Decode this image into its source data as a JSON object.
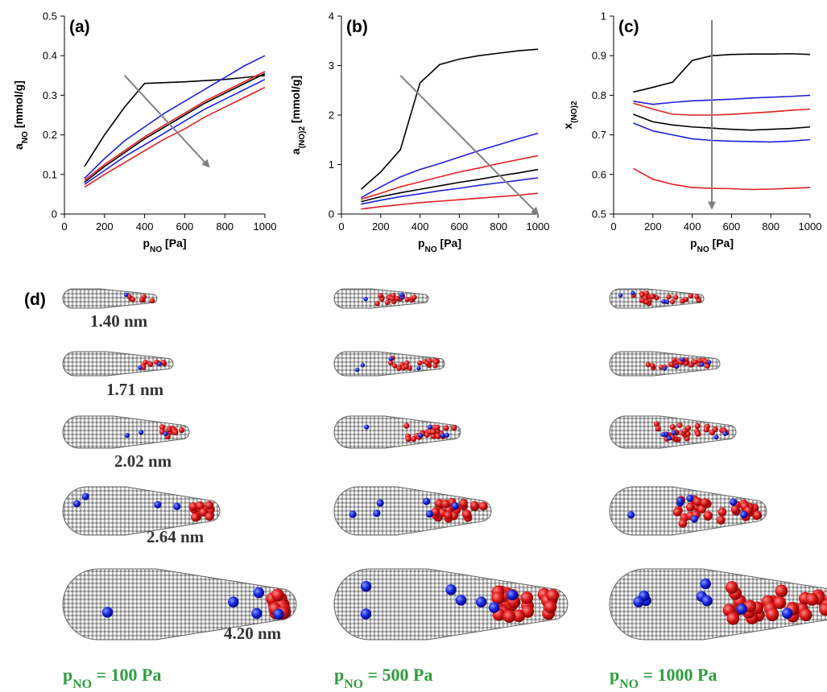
{
  "chart_data": [
    {
      "type": "line",
      "title": "(a)",
      "xlabel": [
        "p",
        "NO",
        " [Pa]"
      ],
      "ylabel": [
        "a",
        "NO",
        " [mmol/g]"
      ],
      "x": [
        100,
        200,
        300,
        400,
        500,
        600,
        700,
        800,
        900,
        1000
      ],
      "xlim": [
        0,
        1000
      ],
      "xticks": [
        0,
        200,
        400,
        600,
        800,
        1000
      ],
      "ylim": [
        0,
        0.5
      ],
      "yticks": [
        0,
        0.1,
        0.2,
        0.3,
        0.4,
        0.5
      ],
      "series": [
        {
          "color": "#000000",
          "values": [
            0.12,
            0.2,
            0.27,
            0.33,
            0.332,
            0.334,
            0.337,
            0.34,
            0.345,
            0.35
          ]
        },
        {
          "color": "#1f1fe0",
          "values": [
            0.09,
            0.14,
            0.185,
            0.22,
            0.255,
            0.285,
            0.315,
            0.345,
            0.375,
            0.4
          ]
        },
        {
          "color": "#e02020",
          "values": [
            0.085,
            0.125,
            0.16,
            0.195,
            0.225,
            0.255,
            0.285,
            0.31,
            0.335,
            0.36
          ]
        },
        {
          "color": "#000000",
          "values": [
            0.08,
            0.12,
            0.155,
            0.19,
            0.22,
            0.25,
            0.28,
            0.305,
            0.33,
            0.355
          ]
        },
        {
          "color": "#1f1fe0",
          "values": [
            0.075,
            0.11,
            0.145,
            0.175,
            0.205,
            0.235,
            0.265,
            0.29,
            0.315,
            0.34
          ]
        },
        {
          "color": "#e02020",
          "values": [
            0.068,
            0.1,
            0.13,
            0.16,
            0.19,
            0.215,
            0.245,
            0.27,
            0.295,
            0.32
          ]
        }
      ]
    },
    {
      "type": "line",
      "title": "(b)",
      "xlabel": [
        "p",
        "NO",
        " [Pa]"
      ],
      "ylabel": [
        "a",
        "(NO)2",
        " [mmol/g]"
      ],
      "x": [
        100,
        200,
        300,
        400,
        500,
        600,
        700,
        800,
        900,
        1000
      ],
      "xlim": [
        0,
        1000
      ],
      "xticks": [
        0,
        200,
        400,
        600,
        800,
        1000
      ],
      "ylim": [
        0,
        4
      ],
      "yticks": [
        0,
        1,
        2,
        3,
        4
      ],
      "series": [
        {
          "color": "#000000",
          "values": [
            0.5,
            0.85,
            1.3,
            2.65,
            3.02,
            3.13,
            3.2,
            3.25,
            3.3,
            3.33
          ]
        },
        {
          "color": "#1f1fe0",
          "values": [
            0.33,
            0.55,
            0.75,
            0.9,
            1.02,
            1.15,
            1.28,
            1.4,
            1.52,
            1.63
          ]
        },
        {
          "color": "#e02020",
          "values": [
            0.3,
            0.42,
            0.55,
            0.65,
            0.75,
            0.85,
            0.93,
            1.02,
            1.1,
            1.18
          ]
        },
        {
          "color": "#000000",
          "values": [
            0.25,
            0.35,
            0.43,
            0.5,
            0.57,
            0.64,
            0.7,
            0.77,
            0.83,
            0.9
          ]
        },
        {
          "color": "#1f1fe0",
          "values": [
            0.2,
            0.28,
            0.35,
            0.41,
            0.47,
            0.52,
            0.58,
            0.63,
            0.68,
            0.73
          ]
        },
        {
          "color": "#e02020",
          "values": [
            0.1,
            0.15,
            0.19,
            0.23,
            0.26,
            0.29,
            0.32,
            0.35,
            0.38,
            0.42
          ]
        }
      ]
    },
    {
      "type": "line",
      "title": "(c)",
      "xlabel": [
        "p",
        "NO",
        " [Pa]"
      ],
      "ylabel": [
        "x",
        "(NO)2"
      ],
      "x": [
        100,
        200,
        300,
        400,
        500,
        600,
        700,
        800,
        900,
        1000
      ],
      "xlim": [
        0,
        1000
      ],
      "xticks": [
        0,
        200,
        400,
        600,
        800,
        1000
      ],
      "ylim": [
        0.5,
        1
      ],
      "yticks": [
        0.5,
        0.6,
        0.7,
        0.8,
        0.9,
        1
      ],
      "series": [
        {
          "color": "#000000",
          "values": [
            0.808,
            0.82,
            0.833,
            0.888,
            0.9,
            0.903,
            0.904,
            0.904,
            0.905,
            0.903
          ]
        },
        {
          "color": "#1f1fe0",
          "values": [
            0.785,
            0.777,
            0.782,
            0.786,
            0.788,
            0.79,
            0.793,
            0.795,
            0.797,
            0.8
          ]
        },
        {
          "color": "#e02020",
          "values": [
            0.78,
            0.765,
            0.752,
            0.75,
            0.75,
            0.752,
            0.755,
            0.758,
            0.762,
            0.765
          ]
        },
        {
          "color": "#000000",
          "values": [
            0.752,
            0.733,
            0.725,
            0.72,
            0.717,
            0.714,
            0.712,
            0.714,
            0.716,
            0.72
          ]
        },
        {
          "color": "#1f1fe0",
          "values": [
            0.73,
            0.71,
            0.7,
            0.69,
            0.686,
            0.684,
            0.683,
            0.682,
            0.684,
            0.688
          ]
        },
        {
          "color": "#e02020",
          "values": [
            0.615,
            0.588,
            0.575,
            0.567,
            0.565,
            0.564,
            0.562,
            0.563,
            0.565,
            0.567
          ]
        }
      ]
    }
  ],
  "panel_d": {
    "label": "(d)",
    "sizes": [
      "1.40 nm",
      "1.71 nm",
      "2.02 nm",
      "2.64 nm",
      "4.20 nm"
    ],
    "pressures": [
      [
        "p",
        "NO",
        " = 100 Pa"
      ],
      [
        "p",
        "NO",
        " = 500 Pa"
      ],
      [
        "p",
        "NO",
        " = 1000 Pa"
      ]
    ]
  }
}
